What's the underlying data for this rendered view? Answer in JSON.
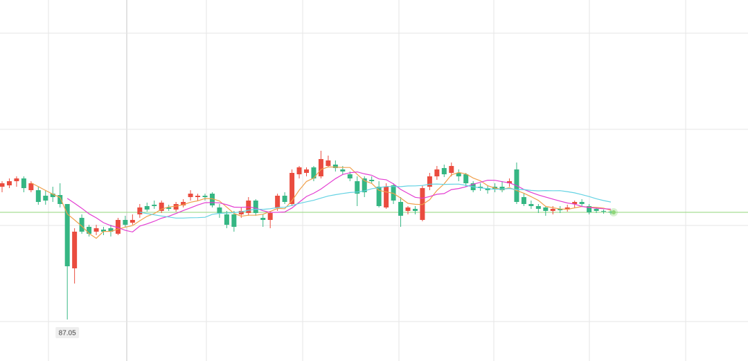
{
  "chart_data": {
    "type": "candlestick",
    "ylim": [
      86.45,
      91.67
    ],
    "up_color": "#ea4c3f",
    "down_color": "#35b683",
    "last_price_color": "#8fd67a",
    "low_label": 87.05,
    "moving_averages": [
      {
        "period": 5,
        "color": "#f0a04b"
      },
      {
        "period": 10,
        "color": "#e33bd1"
      },
      {
        "period": 20,
        "color": "#63d2e3"
      }
    ],
    "ohlc": [
      [
        88.97,
        89.05,
        88.89,
        89.02
      ],
      [
        88.99,
        89.09,
        88.95,
        89.05
      ],
      [
        89.05,
        89.12,
        88.97,
        89.09
      ],
      [
        89.09,
        89.12,
        88.89,
        88.95
      ],
      [
        88.92,
        89.05,
        88.89,
        89.02
      ],
      [
        88.92,
        88.97,
        88.71,
        88.75
      ],
      [
        88.84,
        88.92,
        88.71,
        88.77
      ],
      [
        88.87,
        88.97,
        88.75,
        88.82
      ],
      [
        88.85,
        89.02,
        88.67,
        88.72
      ],
      [
        88.72,
        88.72,
        87.05,
        87.82
      ],
      [
        87.79,
        88.37,
        87.57,
        88.32
      ],
      [
        88.52,
        88.57,
        88.29,
        88.32
      ],
      [
        88.39,
        88.42,
        88.25,
        88.29
      ],
      [
        88.32,
        88.42,
        88.27,
        88.37
      ],
      [
        88.35,
        88.39,
        88.27,
        88.32
      ],
      [
        88.37,
        88.42,
        88.25,
        88.32
      ],
      [
        88.29,
        88.52,
        88.27,
        88.49
      ],
      [
        88.49,
        88.55,
        88.39,
        88.42
      ],
      [
        88.45,
        88.57,
        88.42,
        88.49
      ],
      [
        88.57,
        88.72,
        88.52,
        88.67
      ],
      [
        88.69,
        88.74,
        88.61,
        88.64
      ],
      [
        88.71,
        88.77,
        88.65,
        88.69
      ],
      [
        88.62,
        88.77,
        88.59,
        88.74
      ],
      [
        88.67,
        88.71,
        88.62,
        88.65
      ],
      [
        88.64,
        88.75,
        88.61,
        88.72
      ],
      [
        88.7,
        88.79,
        88.67,
        88.75
      ],
      [
        88.82,
        88.92,
        88.77,
        88.87
      ],
      [
        88.82,
        88.87,
        88.77,
        88.84
      ],
      [
        88.84,
        88.87,
        88.77,
        88.82
      ],
      [
        88.87,
        88.89,
        88.67,
        88.7
      ],
      [
        88.67,
        88.72,
        88.52,
        88.59
      ],
      [
        88.57,
        88.62,
        88.37,
        88.42
      ],
      [
        88.57,
        88.62,
        88.32,
        88.39
      ],
      [
        88.57,
        88.67,
        88.52,
        88.62
      ],
      [
        88.59,
        88.82,
        88.55,
        88.77
      ],
      [
        88.77,
        88.79,
        88.55,
        88.59
      ],
      [
        88.52,
        88.57,
        88.39,
        88.49
      ],
      [
        88.49,
        88.62,
        88.37,
        88.59
      ],
      [
        88.67,
        88.87,
        88.62,
        88.84
      ],
      [
        88.84,
        88.89,
        88.72,
        88.75
      ],
      [
        88.72,
        89.22,
        88.69,
        89.17
      ],
      [
        89.15,
        89.27,
        89.09,
        89.25
      ],
      [
        89.17,
        89.25,
        89.12,
        89.22
      ],
      [
        89.25,
        89.27,
        89.05,
        89.09
      ],
      [
        89.12,
        89.49,
        89.09,
        89.37
      ],
      [
        89.27,
        89.42,
        89.25,
        89.35
      ],
      [
        89.29,
        89.35,
        89.19,
        89.24
      ],
      [
        89.22,
        89.27,
        89.15,
        89.19
      ],
      [
        89.15,
        89.19,
        89.05,
        89.09
      ],
      [
        89.05,
        89.12,
        88.69,
        88.87
      ],
      [
        89.09,
        89.12,
        88.82,
        88.89
      ],
      [
        89.07,
        89.12,
        89.02,
        89.05
      ],
      [
        88.97,
        89.05,
        88.67,
        88.69
      ],
      [
        88.67,
        89.02,
        88.65,
        88.97
      ],
      [
        88.99,
        89.02,
        88.72,
        88.77
      ],
      [
        88.75,
        88.82,
        88.39,
        88.55
      ],
      [
        88.62,
        88.69,
        88.57,
        88.67
      ],
      [
        88.65,
        88.69,
        88.57,
        88.62
      ],
      [
        88.49,
        88.99,
        88.47,
        88.95
      ],
      [
        88.97,
        89.17,
        88.92,
        89.12
      ],
      [
        89.12,
        89.27,
        89.07,
        89.22
      ],
      [
        89.24,
        89.29,
        89.11,
        89.15
      ],
      [
        89.17,
        89.32,
        89.12,
        89.27
      ],
      [
        89.17,
        89.22,
        89.05,
        89.12
      ],
      [
        89.15,
        89.17,
        88.97,
        89.02
      ],
      [
        89.02,
        89.05,
        88.89,
        88.92
      ],
      [
        88.97,
        89.02,
        88.91,
        88.95
      ],
      [
        88.95,
        88.99,
        88.87,
        88.92
      ],
      [
        88.97,
        89.02,
        88.89,
        88.94
      ],
      [
        88.97,
        89.05,
        88.89,
        88.92
      ],
      [
        89.02,
        89.09,
        88.97,
        89.05
      ],
      [
        89.22,
        89.32,
        88.72,
        88.75
      ],
      [
        88.82,
        88.87,
        88.69,
        88.72
      ],
      [
        88.72,
        88.77,
        88.65,
        88.69
      ],
      [
        88.69,
        88.72,
        88.59,
        88.65
      ],
      [
        88.67,
        88.69,
        88.55,
        88.62
      ],
      [
        88.62,
        88.69,
        88.57,
        88.65
      ],
      [
        88.65,
        88.69,
        88.59,
        88.63
      ],
      [
        88.64,
        88.71,
        88.61,
        88.67
      ],
      [
        88.72,
        88.77,
        88.67,
        88.75
      ],
      [
        88.75,
        88.79,
        88.69,
        88.72
      ],
      [
        88.69,
        88.72,
        88.57,
        88.6
      ],
      [
        88.65,
        88.67,
        88.59,
        88.62
      ],
      [
        88.62,
        88.64,
        88.58,
        88.61
      ],
      [
        88.61,
        88.63,
        88.57,
        88.6
      ]
    ]
  }
}
